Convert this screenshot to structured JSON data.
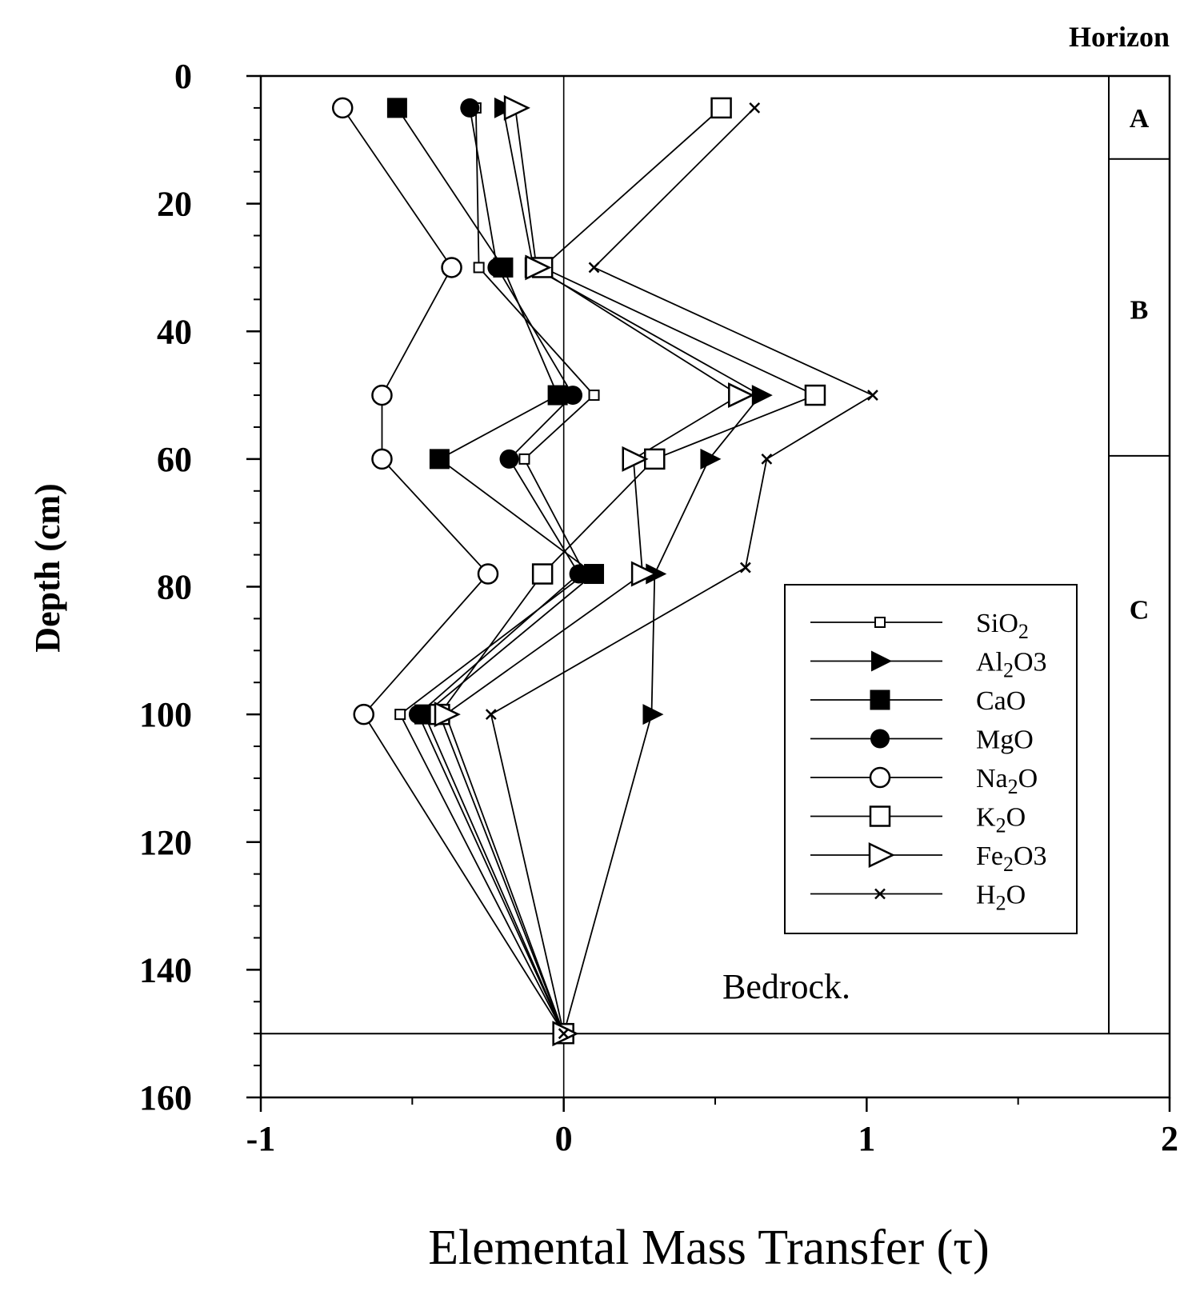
{
  "chart_data": {
    "type": "line",
    "orientation": "depth-profile",
    "xlabel": "Elemental Mass Transfer (τ)",
    "ylabel": "Depth (cm)",
    "xlim": [
      -1,
      2
    ],
    "ylim": [
      0,
      160
    ],
    "y_inverted": true,
    "x_ticks": [
      -1,
      0,
      1,
      2
    ],
    "y_ticks": [
      0,
      20,
      40,
      60,
      80,
      100,
      120,
      140,
      160
    ],
    "grid": false,
    "legend_position": "lower-right",
    "horizon_title": "Horizon",
    "horizons": [
      {
        "label": "A",
        "top": 0,
        "bottom": 13
      },
      {
        "label": "B",
        "top": 13,
        "bottom": 59.5
      },
      {
        "label": "C",
        "top": 59.5,
        "bottom": 150
      }
    ],
    "annotation": "Bedrock.",
    "bedrock_depth": 150,
    "series": [
      {
        "name": "SiO2",
        "label_base": "SiO",
        "label_sub": "2",
        "label_tail": "",
        "marker": "square-small-open",
        "points": [
          {
            "x": -0.29,
            "y": 5
          },
          {
            "x": -0.28,
            "y": 30
          },
          {
            "x": 0.1,
            "y": 50
          },
          {
            "x": -0.13,
            "y": 60
          },
          {
            "x": 0.07,
            "y": 78
          },
          {
            "x": -0.54,
            "y": 100
          },
          {
            "x": 0,
            "y": 150
          }
        ]
      },
      {
        "name": "Al2O3",
        "label_base": "Al",
        "label_sub": "2",
        "label_tail": "O3",
        "marker": "triangle-right-filled",
        "points": [
          {
            "x": -0.2,
            "y": 5
          },
          {
            "x": -0.1,
            "y": 30
          },
          {
            "x": 0.65,
            "y": 50
          },
          {
            "x": 0.48,
            "y": 60
          },
          {
            "x": 0.3,
            "y": 78
          },
          {
            "x": 0.29,
            "y": 100
          },
          {
            "x": 0,
            "y": 150
          }
        ]
      },
      {
        "name": "CaO",
        "label_base": "CaO",
        "label_sub": "",
        "label_tail": "",
        "marker": "square-filled",
        "points": [
          {
            "x": -0.55,
            "y": 5
          },
          {
            "x": -0.2,
            "y": 30
          },
          {
            "x": -0.02,
            "y": 50
          },
          {
            "x": -0.41,
            "y": 60
          },
          {
            "x": 0.1,
            "y": 78
          },
          {
            "x": -0.46,
            "y": 100
          },
          {
            "x": 0,
            "y": 150
          }
        ]
      },
      {
        "name": "MgO",
        "label_base": "MgO",
        "label_sub": "",
        "label_tail": "",
        "marker": "circle-filled",
        "points": [
          {
            "x": -0.31,
            "y": 5
          },
          {
            "x": -0.22,
            "y": 30
          },
          {
            "x": 0.03,
            "y": 50
          },
          {
            "x": -0.18,
            "y": 60
          },
          {
            "x": 0.05,
            "y": 78
          },
          {
            "x": -0.48,
            "y": 100
          },
          {
            "x": 0,
            "y": 150
          }
        ]
      },
      {
        "name": "Na2O",
        "label_base": "Na",
        "label_sub": "2",
        "label_tail": "O",
        "marker": "circle-open",
        "points": [
          {
            "x": -0.73,
            "y": 5
          },
          {
            "x": -0.37,
            "y": 30
          },
          {
            "x": -0.6,
            "y": 50
          },
          {
            "x": -0.6,
            "y": 60
          },
          {
            "x": -0.25,
            "y": 78
          },
          {
            "x": -0.66,
            "y": 100
          },
          {
            "x": 0,
            "y": 150
          }
        ]
      },
      {
        "name": "K2O",
        "label_base": "K",
        "label_sub": "2",
        "label_tail": "O",
        "marker": "square-open",
        "points": [
          {
            "x": 0.52,
            "y": 5
          },
          {
            "x": -0.07,
            "y": 30
          },
          {
            "x": 0.83,
            "y": 50
          },
          {
            "x": 0.3,
            "y": 60
          },
          {
            "x": -0.07,
            "y": 78
          },
          {
            "x": -0.41,
            "y": 100
          },
          {
            "x": 0,
            "y": 150
          }
        ]
      },
      {
        "name": "Fe2O3",
        "label_base": "Fe",
        "label_sub": "2",
        "label_tail": "O3",
        "marker": "triangle-right-open",
        "points": [
          {
            "x": -0.16,
            "y": 5
          },
          {
            "x": -0.09,
            "y": 30
          },
          {
            "x": 0.58,
            "y": 50
          },
          {
            "x": 0.23,
            "y": 60
          },
          {
            "x": 0.26,
            "y": 78
          },
          {
            "x": -0.39,
            "y": 100
          },
          {
            "x": 0,
            "y": 150
          }
        ]
      },
      {
        "name": "H2O",
        "label_base": "H",
        "label_sub": "2",
        "label_tail": "O",
        "marker": "x-cross",
        "points": [
          {
            "x": 0.63,
            "y": 5
          },
          {
            "x": 0.1,
            "y": 30
          },
          {
            "x": 1.02,
            "y": 50
          },
          {
            "x": 0.67,
            "y": 60
          },
          {
            "x": 0.6,
            "y": 77
          },
          {
            "x": -0.24,
            "y": 100
          },
          {
            "x": 0,
            "y": 150
          }
        ]
      }
    ]
  }
}
